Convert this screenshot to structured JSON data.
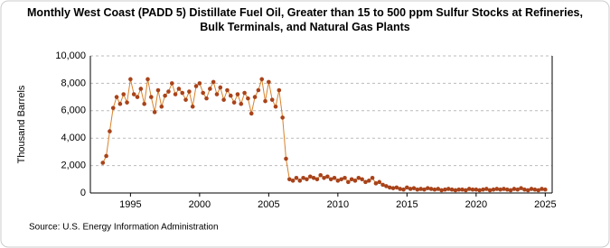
{
  "chart_data": {
    "type": "scatter",
    "title": "Monthly West Coast (PADD 5) Distillate Fuel Oil, Greater than 15 to 500 ppm Sulfur Stocks at Refineries, Bulk Terminals, and Natural Gas Plants",
    "ylabel": "Thousand Barrels",
    "source": "Source: U.S. Energy Information Administration",
    "color": "#a8431a",
    "line_color": "#d9822b",
    "grid": true,
    "xlim": [
      1992.1,
      2025.5
    ],
    "xticks": [
      1995,
      2000,
      2005,
      2010,
      2015,
      2020,
      2025
    ],
    "ylim": [
      0,
      10000
    ],
    "yticks": [
      0,
      {
        "value": 2000,
        "label": "2,000"
      },
      {
        "value": 4000,
        "label": "4,000"
      },
      {
        "value": 6000,
        "label": "6,000"
      },
      {
        "value": 8000,
        "label": "8,000"
      },
      {
        "value": 10000,
        "label": "10,000"
      }
    ],
    "x": [
      1993,
      1993.25,
      1993.5,
      1993.75,
      1994,
      1994.25,
      1994.5,
      1994.75,
      1995,
      1995.25,
      1995.5,
      1995.75,
      1996,
      1996.25,
      1996.5,
      1996.75,
      1997,
      1997.25,
      1997.5,
      1997.75,
      1998,
      1998.25,
      1998.5,
      1998.75,
      1999,
      1999.25,
      1999.5,
      1999.75,
      2000,
      2000.25,
      2000.5,
      2000.75,
      2001,
      2001.25,
      2001.5,
      2001.75,
      2002,
      2002.25,
      2002.5,
      2002.75,
      2003,
      2003.25,
      2003.5,
      2003.75,
      2004,
      2004.25,
      2004.5,
      2004.75,
      2005,
      2005.25,
      2005.5,
      2005.75,
      2006,
      2006.25,
      2006.5,
      2006.75,
      2007,
      2007.25,
      2007.5,
      2007.75,
      2008,
      2008.25,
      2008.5,
      2008.75,
      2009,
      2009.25,
      2009.5,
      2009.75,
      2010,
      2010.25,
      2010.5,
      2010.75,
      2011,
      2011.25,
      2011.5,
      2011.75,
      2012,
      2012.25,
      2012.5,
      2012.75,
      2013,
      2013.25,
      2013.5,
      2013.75,
      2014,
      2014.25,
      2014.5,
      2014.75,
      2015,
      2015.25,
      2015.5,
      2015.75,
      2016,
      2016.25,
      2016.5,
      2016.75,
      2017,
      2017.25,
      2017.5,
      2017.75,
      2018,
      2018.25,
      2018.5,
      2018.75,
      2019,
      2019.25,
      2019.5,
      2019.75,
      2020,
      2020.25,
      2020.5,
      2020.75,
      2021,
      2021.25,
      2021.5,
      2021.75,
      2022,
      2022.25,
      2022.5,
      2022.75,
      2023,
      2023.25,
      2023.5,
      2023.75,
      2024,
      2024.25,
      2024.5,
      2024.75,
      2025
    ],
    "values": [
      2200,
      2700,
      4500,
      6200,
      7000,
      6500,
      7200,
      6600,
      8300,
      7200,
      7000,
      7600,
      6500,
      8300,
      7000,
      5900,
      7500,
      6300,
      7100,
      7400,
      8000,
      7200,
      7600,
      7300,
      6800,
      7400,
      6300,
      7800,
      8000,
      7300,
      6900,
      7600,
      8100,
      7200,
      7700,
      6800,
      7500,
      7100,
      6600,
      7200,
      6500,
      7300,
      6900,
      5800,
      7000,
      7500,
      8300,
      6700,
      8100,
      6800,
      6300,
      7500,
      5500,
      2500,
      1000,
      900,
      1100,
      900,
      1100,
      1000,
      1200,
      1100,
      1000,
      1300,
      1100,
      1200,
      1000,
      1100,
      900,
      1000,
      1100,
      800,
      1000,
      900,
      1100,
      1000,
      800,
      900,
      1100,
      700,
      800,
      600,
      500,
      400,
      350,
      400,
      300,
      250,
      400,
      300,
      350,
      250,
      300,
      250,
      350,
      300,
      250,
      300,
      200,
      250,
      300,
      250,
      200,
      250,
      250,
      200,
      300,
      250,
      250,
      200,
      250,
      300,
      200,
      250,
      300,
      250,
      300,
      250,
      200,
      300,
      250,
      350,
      250,
      200,
      300,
      250,
      200,
      300,
      250
    ]
  }
}
